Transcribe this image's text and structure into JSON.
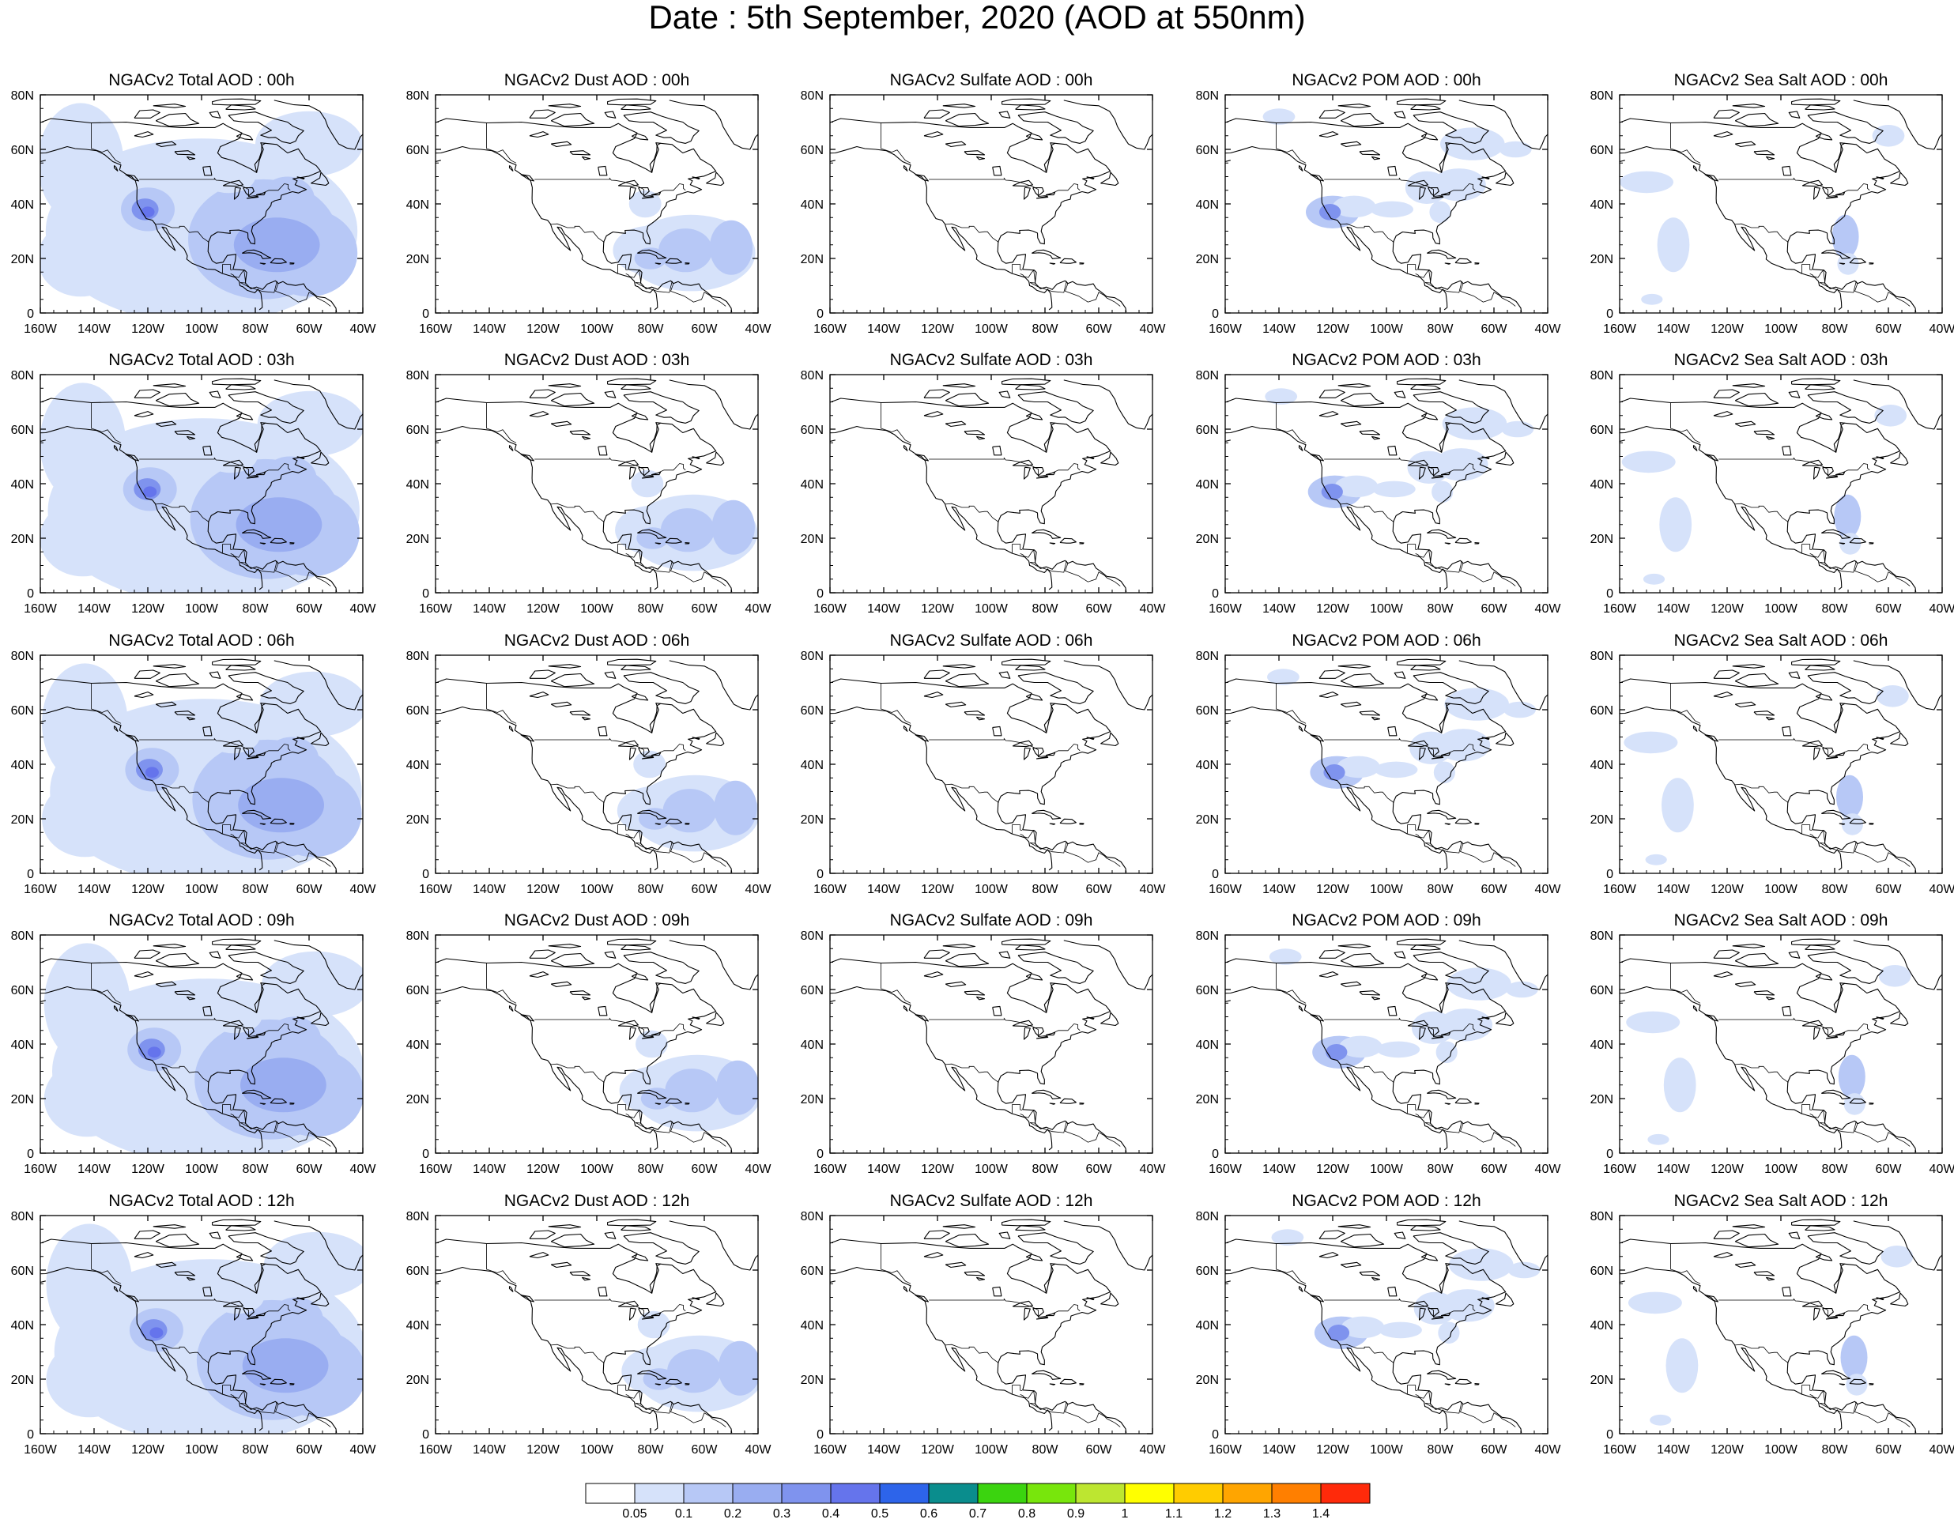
{
  "title": "Date : 5th September, 2020 (AOD at 550nm)",
  "panels": [
    [
      "NGACv2 Total AOD : 00h",
      "NGACv2 Dust AOD : 00h",
      "NGACv2 Sulfate AOD : 00h",
      "NGACv2 POM AOD : 00h",
      "NGACv2 Sea Salt AOD : 00h"
    ],
    [
      "NGACv2 Total AOD : 03h",
      "NGACv2 Dust AOD : 03h",
      "NGACv2 Sulfate AOD : 03h",
      "NGACv2 POM AOD : 03h",
      "NGACv2 Sea Salt AOD : 03h"
    ],
    [
      "NGACv2 Total AOD : 06h",
      "NGACv2 Dust AOD : 06h",
      "NGACv2 Sulfate AOD : 06h",
      "NGACv2 POM AOD : 06h",
      "NGACv2 Sea Salt AOD : 06h"
    ],
    [
      "NGACv2 Total AOD : 09h",
      "NGACv2 Dust AOD : 09h",
      "NGACv2 Sulfate AOD : 09h",
      "NGACv2 POM AOD : 09h",
      "NGACv2 Sea Salt  AOD : 09h"
    ],
    [
      "NGACv2 Total AOD  : 12h",
      "NGACv2 Dust AOD : 12h",
      "NGACv2 Sulfate AOD : 12h",
      "NGACv2 POM  AOD : 12h",
      "NGACv2 Sea Salt  AOD : 12h"
    ]
  ],
  "x_ticks": [
    "160W",
    "140W",
    "120W",
    "100W",
    "80W",
    "60W",
    "40W"
  ],
  "y_ticks": [
    "0",
    "20N",
    "40N",
    "60N",
    "80N"
  ],
  "colorbar": {
    "labels": [
      "0.05",
      "0.1",
      "0.2",
      "0.3",
      "0.4",
      "0.5",
      "0.6",
      "0.7",
      "0.8",
      "0.9",
      "1",
      "1.1",
      "1.2",
      "1.3",
      "1.4"
    ],
    "colors": [
      "#ffffff",
      "#d6e2fa",
      "#b7c8f6",
      "#99adf1",
      "#7f93ee",
      "#6574ec",
      "#2d64ea",
      "#0a8d8d",
      "#3bd40f",
      "#78e60c",
      "#bde630",
      "#ffff00",
      "#ffcc00",
      "#ffa500",
      "#ff7f00",
      "#ff2a0a"
    ]
  }
}
